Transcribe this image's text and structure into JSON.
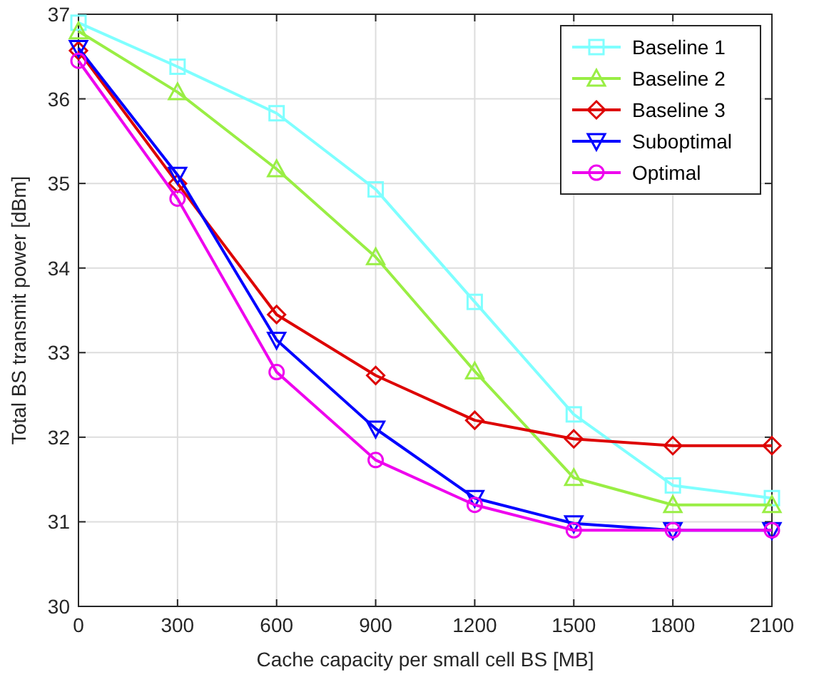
{
  "chart_data": {
    "type": "line",
    "xlabel": "Cache capacity per small cell BS [MB]",
    "ylabel": "Total BS transmit power [dBm]",
    "x": [
      0,
      300,
      600,
      900,
      1200,
      1500,
      1800,
      2100
    ],
    "xlim": [
      0,
      2100
    ],
    "xticks": [
      0,
      300,
      600,
      900,
      1200,
      1500,
      1800,
      2100
    ],
    "ylim": [
      30,
      37
    ],
    "yticks": [
      30,
      31,
      32,
      33,
      34,
      35,
      36,
      37
    ],
    "grid": true,
    "legend": "top right",
    "series": [
      {
        "name": "Baseline 1",
        "color": "#7fffff",
        "marker": "square",
        "values": [
          36.9,
          36.38,
          35.83,
          34.93,
          33.6,
          32.27,
          31.43,
          31.28
        ]
      },
      {
        "name": "Baseline 2",
        "color": "#99ee44",
        "marker": "triangle",
        "values": [
          36.8,
          36.08,
          35.17,
          34.13,
          32.78,
          31.52,
          31.2,
          31.2
        ]
      },
      {
        "name": "Baseline 3",
        "color": "#dd0000",
        "marker": "diamond",
        "values": [
          36.57,
          35.0,
          33.45,
          32.73,
          32.2,
          31.98,
          31.9,
          31.9
        ]
      },
      {
        "name": "Suboptimal",
        "color": "#0000ff",
        "marker": "triangle-down",
        "values": [
          36.6,
          35.1,
          33.15,
          32.1,
          31.28,
          30.98,
          30.9,
          30.9
        ]
      },
      {
        "name": "Optimal",
        "color": "#ee00ee",
        "marker": "circle",
        "values": [
          36.45,
          34.82,
          32.77,
          31.73,
          31.2,
          30.9,
          30.9,
          30.9
        ]
      }
    ]
  }
}
